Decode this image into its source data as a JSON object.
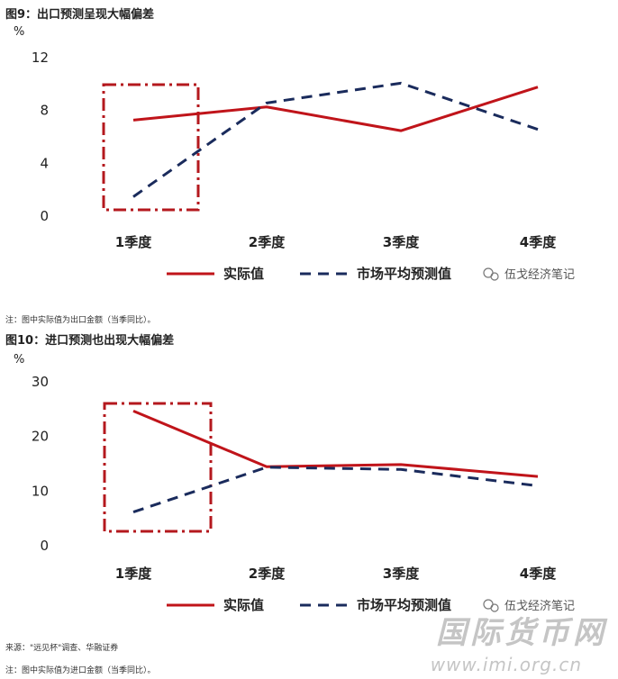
{
  "colors": {
    "actual": "#c0141a",
    "forecast": "#1a2b5c",
    "box": "#b4181e"
  },
  "watermark_text": "伍戈经济笔记",
  "site_watermark": {
    "name": "国际货币网",
    "url": "www.imi.org.cn"
  },
  "chart_data": [
    {
      "type": "line",
      "title": "图9：出口预测呈现大幅偏差",
      "ylabel": "%",
      "ylim": [
        0,
        12
      ],
      "yticks": [
        "0",
        "4",
        "8",
        "12"
      ],
      "categories": [
        "1季度",
        "2季度",
        "3季度",
        "4季度"
      ],
      "series": [
        {
          "name": "实际值",
          "values": [
            7.2,
            8.2,
            6.4,
            9.7
          ]
        },
        {
          "name": "市场平均预测值",
          "values": [
            1.4,
            8.5,
            10.0,
            6.5
          ]
        }
      ],
      "note": "注：图中实际值为出口金额（当季同比）。"
    },
    {
      "type": "line",
      "title": "图10：进口预测也出现大幅偏差",
      "ylabel": "%",
      "ylim": [
        0,
        30
      ],
      "yticks": [
        "0",
        "10",
        "20",
        "30"
      ],
      "categories": [
        "1季度",
        "2季度",
        "3季度",
        "4季度"
      ],
      "series": [
        {
          "name": "实际值",
          "values": [
            24.5,
            14.3,
            14.7,
            12.5
          ]
        },
        {
          "name": "市场平均预测值",
          "values": [
            6.0,
            14.2,
            13.8,
            10.8
          ]
        }
      ],
      "source": "来源：\"远见杯\"调查、华融证券",
      "note": "注：图中实际值为进口金额（当季同比）。"
    }
  ]
}
